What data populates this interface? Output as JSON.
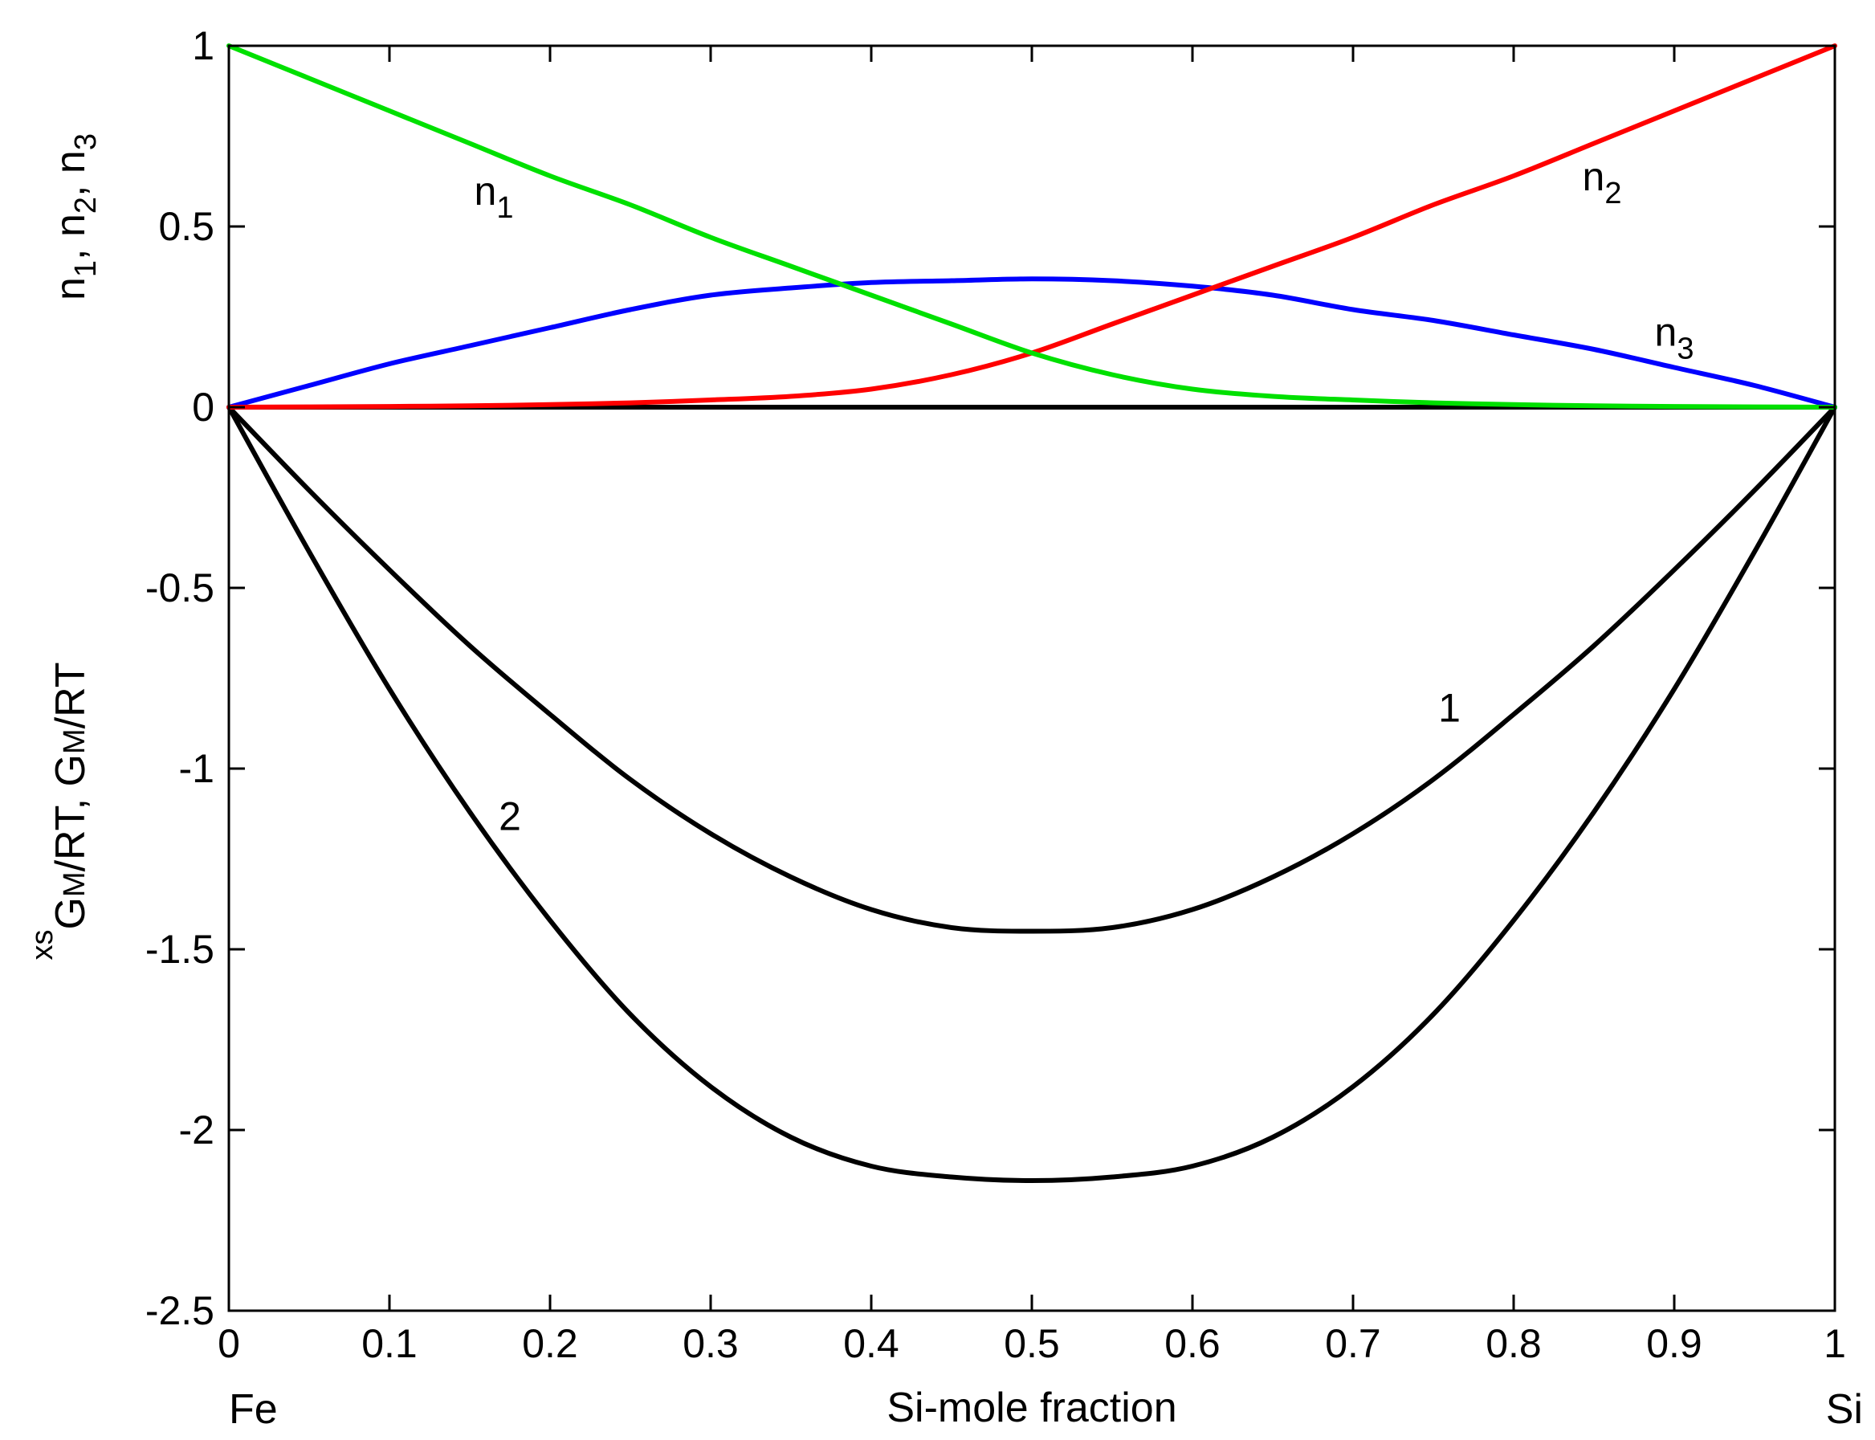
{
  "chart_data": {
    "type": "line",
    "xlabel": "Si-mole fraction",
    "xlim": [
      0,
      1
    ],
    "ylim": [
      -2.5,
      1
    ],
    "grid": false,
    "x_ticks": [
      "0",
      "0.1",
      "0.2",
      "0.3",
      "0.4",
      "0.5",
      "0.6",
      "0.7",
      "0.8",
      "0.9",
      "1"
    ],
    "y_ticks": [
      "1",
      "0.5",
      "0",
      "-0.5",
      "-1",
      "-1.5",
      "-2",
      "-2.5"
    ],
    "x_end_labels": {
      "left": "Fe",
      "right": "Si"
    },
    "ylabel_upper": {
      "parts": [
        "n",
        "1",
        ", ",
        "n",
        "2",
        ", ",
        "n",
        "3"
      ]
    },
    "ylabel_lower": {
      "xs_superscript": "xs",
      "text1": "G",
      "sub1": "M",
      "rest1": "/RT, ",
      "text2": "G",
      "sub2": "M",
      "rest2": "/RT"
    },
    "x": [
      0,
      0.05,
      0.1,
      0.15,
      0.2,
      0.25,
      0.3,
      0.35,
      0.4,
      0.45,
      0.5,
      0.55,
      0.6,
      0.65,
      0.7,
      0.75,
      0.8,
      0.85,
      0.9,
      0.95,
      1
    ],
    "series": [
      {
        "label": "n1",
        "color": "#00e000",
        "values": [
          1.0,
          0.91,
          0.82,
          0.73,
          0.64,
          0.56,
          0.47,
          0.39,
          0.31,
          0.23,
          0.15,
          0.09,
          0.05,
          0.03,
          0.02,
          0.012,
          0.007,
          0.004,
          0.002,
          0.001,
          0.0
        ]
      },
      {
        "label": "n2",
        "color": "#ff0000",
        "values": [
          0.0,
          0.001,
          0.002,
          0.004,
          0.007,
          0.012,
          0.02,
          0.03,
          0.05,
          0.09,
          0.15,
          0.23,
          0.31,
          0.39,
          0.47,
          0.56,
          0.64,
          0.73,
          0.82,
          0.91,
          1.0
        ]
      },
      {
        "label": "n3",
        "color": "#0000ff",
        "values": [
          0.0,
          0.06,
          0.12,
          0.17,
          0.22,
          0.27,
          0.31,
          0.33,
          0.345,
          0.35,
          0.355,
          0.35,
          0.335,
          0.31,
          0.27,
          0.24,
          0.2,
          0.16,
          0.11,
          0.06,
          0.0
        ]
      },
      {
        "label": "1",
        "color": "#000000",
        "values": [
          0.0,
          -0.23,
          -0.45,
          -0.66,
          -0.85,
          -1.03,
          -1.18,
          -1.3,
          -1.39,
          -1.44,
          -1.45,
          -1.44,
          -1.39,
          -1.3,
          -1.18,
          -1.03,
          -0.85,
          -0.66,
          -0.45,
          -0.23,
          0.0
        ]
      },
      {
        "label": "2",
        "color": "#000000",
        "values": [
          0.0,
          -0.4,
          -0.78,
          -1.12,
          -1.42,
          -1.68,
          -1.88,
          -2.02,
          -2.1,
          -2.13,
          -2.14,
          -2.13,
          -2.1,
          -2.02,
          -1.88,
          -1.68,
          -1.42,
          -1.12,
          -0.78,
          -0.4,
          0.0
        ]
      },
      {
        "label": "",
        "color": "#000000",
        "values": [
          0,
          0,
          0,
          0,
          0,
          0,
          0,
          0,
          0,
          0,
          0,
          0,
          0,
          0,
          0,
          0,
          0,
          0,
          0,
          0,
          0
        ]
      }
    ],
    "curve_labels": [
      {
        "main": "n",
        "sub": "1",
        "x": 0.165,
        "y": 0.56
      },
      {
        "main": "n",
        "sub": "2",
        "x": 0.855,
        "y": 0.6
      },
      {
        "main": "n",
        "sub": "3",
        "x": 0.9,
        "y": 0.17
      },
      {
        "main": "1",
        "sub": "",
        "x": 0.76,
        "y": -0.87
      },
      {
        "main": "2",
        "sub": "",
        "x": 0.175,
        "y": -1.17
      }
    ]
  }
}
